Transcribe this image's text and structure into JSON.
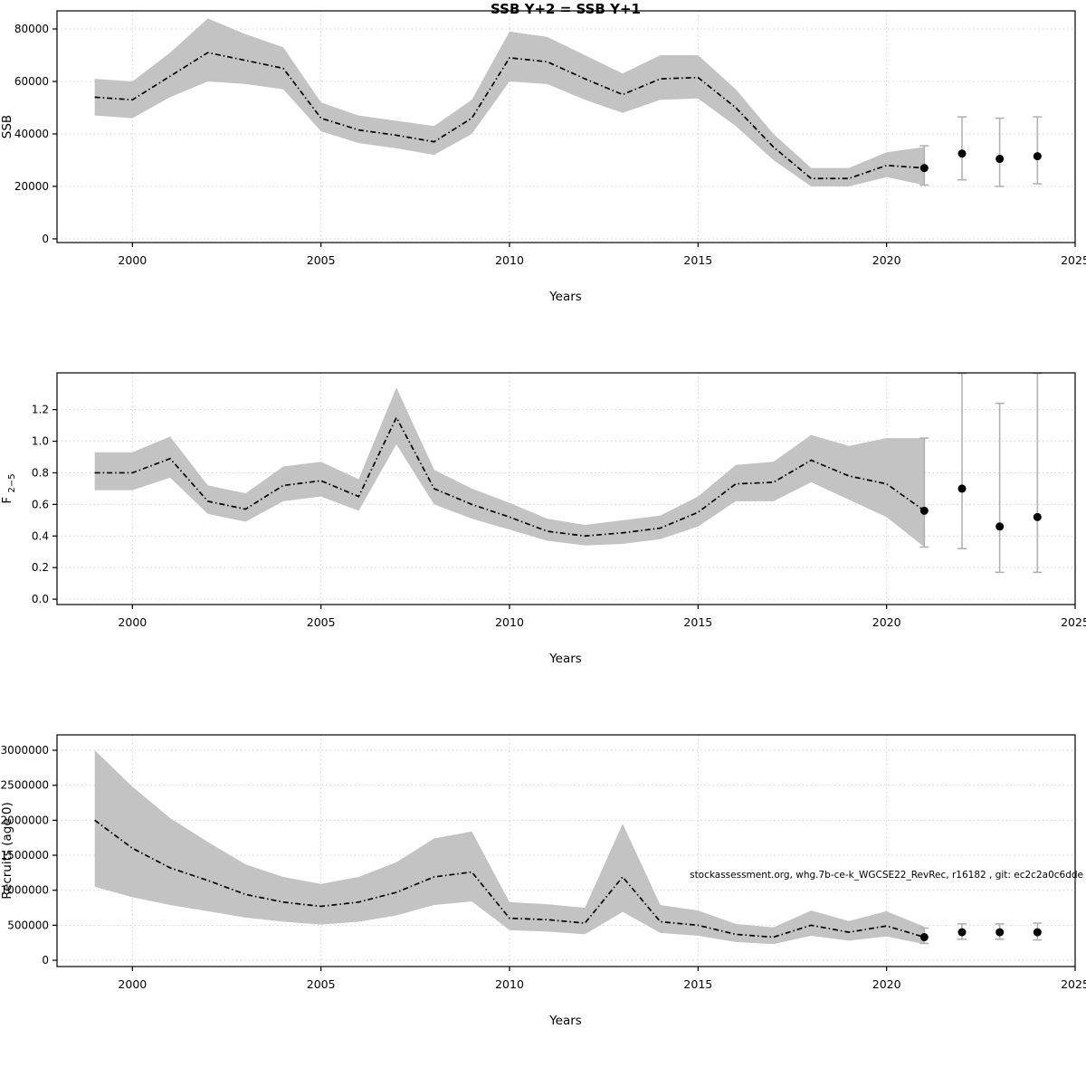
{
  "style": {
    "background": "#ffffff",
    "band_color": "#c3c3c3",
    "line_color": "#000000",
    "point_color": "#000000",
    "errorbar_color": "#b2b2b2",
    "grid_color": "#d2d2d2",
    "axis_color": "#000000"
  },
  "chart_data": [
    {
      "type": "line",
      "title": "SSB Y+2 = SSB Y+1",
      "xlabel": "Years",
      "ylabel": "SSB",
      "xlim": [
        1998,
        2025
      ],
      "ylim": [
        -1400,
        86900
      ],
      "xticks": [
        2000,
        2005,
        2010,
        2015,
        2020,
        2025
      ],
      "yticks": [
        0,
        20000,
        40000,
        60000,
        80000
      ],
      "ytick_labels": [
        "0",
        "20000",
        "40000",
        "60000",
        "80000"
      ],
      "grid": true,
      "years": [
        1999,
        2000,
        2001,
        2002,
        2003,
        2004,
        2005,
        2006,
        2007,
        2008,
        2009,
        2010,
        2011,
        2012,
        2013,
        2014,
        2015,
        2016,
        2017,
        2018,
        2019,
        2020,
        2021
      ],
      "median": [
        54000,
        53000,
        62000,
        71000,
        68000,
        65000,
        46000,
        41500,
        39500,
        37000,
        46000,
        69000,
        67500,
        61000,
        55000,
        61000,
        61500,
        50000,
        35000,
        23000,
        23000,
        28000,
        27000
      ],
      "lower": [
        47000,
        46000,
        54000,
        60000,
        59000,
        57000,
        41000,
        36500,
        34500,
        32000,
        40000,
        60000,
        59000,
        53000,
        48000,
        53000,
        53500,
        43000,
        30000,
        20000,
        20000,
        23500,
        20500
      ],
      "upper": [
        61000,
        60000,
        71000,
        84000,
        78000,
        73000,
        52000,
        47000,
        45000,
        43000,
        53000,
        79000,
        77000,
        70000,
        63000,
        70000,
        70000,
        57000,
        40000,
        27000,
        27000,
        33000,
        35000
      ],
      "forecast": {
        "years": [
          2021,
          2022,
          2023,
          2024
        ],
        "values": [
          27000,
          32500,
          30500,
          31500
        ],
        "lower": [
          20500,
          22500,
          20000,
          21000
        ],
        "upper": [
          35500,
          46500,
          46000,
          46500
        ]
      }
    },
    {
      "type": "line",
      "title": "",
      "xlabel": "Years",
      "ylabel": "F",
      "ylabel_sub": "2−5",
      "xlim": [
        1998,
        2025
      ],
      "ylim": [
        -0.034,
        1.433
      ],
      "xticks": [
        2000,
        2005,
        2010,
        2015,
        2020,
        2025
      ],
      "yticks": [
        0,
        0.2,
        0.4,
        0.6,
        0.8,
        1.0,
        1.2
      ],
      "ytick_labels": [
        "0.0",
        "0.2",
        "0.4",
        "0.6",
        "0.8",
        "1.0",
        "1.2"
      ],
      "grid": true,
      "years": [
        1999,
        2000,
        2001,
        2002,
        2003,
        2004,
        2005,
        2006,
        2007,
        2008,
        2009,
        2010,
        2011,
        2012,
        2013,
        2014,
        2015,
        2016,
        2017,
        2018,
        2019,
        2020,
        2021
      ],
      "median": [
        0.8,
        0.8,
        0.89,
        0.62,
        0.57,
        0.72,
        0.75,
        0.65,
        1.15,
        0.7,
        0.6,
        0.52,
        0.43,
        0.4,
        0.42,
        0.45,
        0.55,
        0.73,
        0.74,
        0.88,
        0.78,
        0.73,
        0.56
      ],
      "lower": [
        0.69,
        0.69,
        0.77,
        0.54,
        0.49,
        0.62,
        0.65,
        0.56,
        0.98,
        0.6,
        0.51,
        0.44,
        0.37,
        0.34,
        0.35,
        0.38,
        0.46,
        0.62,
        0.62,
        0.74,
        0.63,
        0.52,
        0.33
      ],
      "upper": [
        0.93,
        0.93,
        1.03,
        0.72,
        0.67,
        0.84,
        0.87,
        0.76,
        1.34,
        0.82,
        0.7,
        0.61,
        0.51,
        0.47,
        0.5,
        0.53,
        0.65,
        0.85,
        0.87,
        1.04,
        0.97,
        1.02,
        1.02
      ],
      "forecast": {
        "years": [
          2021,
          2022,
          2023,
          2024
        ],
        "values": [
          0.56,
          0.7,
          0.46,
          0.52
        ],
        "lower": [
          0.33,
          0.32,
          0.17,
          0.17
        ],
        "upper": [
          1.02,
          1.43,
          1.24,
          1.43
        ]
      }
    },
    {
      "type": "line",
      "title": "",
      "xlabel": "Years",
      "ylabel": "Recruits (age 0)",
      "xlim": [
        1998,
        2025
      ],
      "ylim": [
        -90000,
        3220000
      ],
      "xticks": [
        2000,
        2005,
        2010,
        2015,
        2020,
        2025
      ],
      "yticks": [
        0,
        500000,
        1000000,
        1500000,
        2000000,
        2500000,
        3000000
      ],
      "ytick_labels": [
        "0",
        "500000",
        "1000000",
        "1500000",
        "2000000",
        "2500000",
        "3000000"
      ],
      "grid": true,
      "annotation": "stockassessment.org, whg.7b-ce-k_WGCSE22_RevRec, r16182 , git: ec2c2a0c6dde",
      "years": [
        1999,
        2000,
        2001,
        2002,
        2003,
        2004,
        2005,
        2006,
        2007,
        2008,
        2009,
        2010,
        2011,
        2012,
        2013,
        2014,
        2015,
        2016,
        2017,
        2018,
        2019,
        2020,
        2021
      ],
      "median": [
        2000000,
        1600000,
        1320000,
        1140000,
        940000,
        830000,
        770000,
        830000,
        970000,
        1190000,
        1260000,
        600000,
        580000,
        530000,
        1190000,
        550000,
        500000,
        370000,
        330000,
        500000,
        400000,
        490000,
        330000
      ],
      "lower": [
        1050000,
        900000,
        790000,
        700000,
        610000,
        550000,
        510000,
        550000,
        640000,
        790000,
        840000,
        430000,
        410000,
        370000,
        690000,
        390000,
        350000,
        260000,
        230000,
        350000,
        280000,
        340000,
        230000
      ],
      "upper": [
        3000000,
        2480000,
        2030000,
        1690000,
        1370000,
        1190000,
        1090000,
        1190000,
        1400000,
        1740000,
        1840000,
        830000,
        800000,
        750000,
        1950000,
        790000,
        710000,
        520000,
        470000,
        710000,
        560000,
        700000,
        480000
      ],
      "forecast": {
        "years": [
          2021,
          2022,
          2023,
          2024
        ],
        "values": [
          330000,
          400000,
          400000,
          400000
        ],
        "lower": [
          240000,
          300000,
          300000,
          290000
        ],
        "upper": [
          460000,
          520000,
          520000,
          530000
        ]
      }
    }
  ]
}
